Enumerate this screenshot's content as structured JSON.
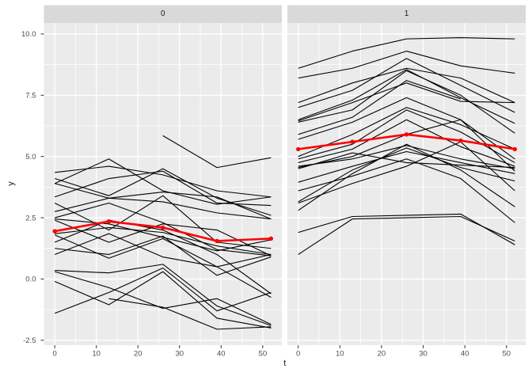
{
  "colors": {
    "background": "#FFFFFF",
    "panel_bg": "#EBEBEB",
    "strip_bg": "#D9D9D9",
    "grid": "#FFFFFF",
    "tick": "#333333",
    "axis_text": "#4D4D4D",
    "title_text": "#1A1A1A",
    "series_line": "#000000",
    "mean_line": "#FF0000"
  },
  "chart_data": {
    "type": "line",
    "title": "",
    "xlabel": "t",
    "ylabel": "y",
    "grid": true,
    "legend": "none",
    "x": [
      0,
      13,
      26,
      39,
      52
    ],
    "x_domain": [
      -2.6,
      54.6
    ],
    "y_domain": [
      -2.7,
      10.45
    ],
    "x_ticks": [
      0,
      10,
      20,
      30,
      40,
      50
    ],
    "x_tick_labels": [
      "0",
      "10",
      "20",
      "30",
      "40",
      "50"
    ],
    "x_minor_ticks": [
      5,
      15,
      25,
      35,
      45
    ],
    "y_ticks": [
      -2.5,
      0,
      2.5,
      5,
      7.5,
      10
    ],
    "y_tick_labels": [
      "-2.5",
      "0.0",
      "2.5",
      "5.0",
      "7.5",
      "10.0"
    ],
    "y_minor_ticks": [
      -1.25,
      1.25,
      3.75,
      6.25,
      8.75
    ],
    "facets": [
      {
        "label": "0",
        "mean": [
          1.95,
          2.35,
          2.1,
          1.55,
          1.65
        ],
        "series": [
          [
            4.35,
            4.6,
            4.25,
            3.6,
            3.35
          ],
          [
            4.1,
            3.4,
            4.5,
            3.3,
            2.6
          ],
          [
            3.9,
            4.9,
            3.6,
            3.05,
            3.35
          ],
          [
            3.9,
            3.3,
            3.55,
            3.35,
            2.45
          ],
          [
            3.35,
            4.1,
            4.4,
            3.1,
            3.0
          ],
          [
            3.1,
            2.0,
            3.4,
            1.5,
            1.25
          ],
          [
            2.75,
            3.3,
            3.15,
            2.7,
            2.45
          ],
          [
            2.5,
            3.1,
            2.3,
            1.2,
            0.95
          ],
          [
            2.45,
            2.25,
            1.7,
            1.15,
            1.6
          ],
          [
            2.4,
            1.5,
            2.25,
            2.0,
            0.95
          ],
          [
            1.85,
            2.1,
            1.9,
            1.35,
            1.0
          ],
          [
            1.8,
            0.85,
            1.65,
            0.5,
            1.0
          ],
          [
            1.5,
            2.4,
            2.0,
            1.0,
            -0.6
          ],
          [
            1.25,
            1.0,
            1.75,
            0.15,
            0.9
          ],
          [
            1.0,
            1.85,
            0.9,
            0.5,
            -0.75
          ],
          [
            0.35,
            0.25,
            0.6,
            -1.1,
            -1.9
          ],
          [
            0.3,
            -0.35,
            -1.2,
            -0.8,
            -1.85
          ],
          [
            -0.1,
            -1.05,
            0.3,
            -1.6,
            -2.0
          ],
          [
            -1.4,
            -0.55,
            0.45,
            -1.3,
            -0.55
          ],
          [
            null,
            -0.8,
            -1.15,
            -2.05,
            -1.95
          ],
          [
            null,
            null,
            5.85,
            4.55,
            4.95
          ]
        ]
      },
      {
        "label": "1",
        "mean": [
          5.3,
          5.6,
          5.9,
          5.65,
          5.3
        ],
        "series": [
          [
            8.6,
            9.3,
            9.8,
            9.85,
            9.8
          ],
          [
            8.2,
            8.6,
            9.3,
            8.7,
            8.4
          ],
          [
            7.2,
            8.0,
            8.6,
            8.2,
            7.2
          ],
          [
            7.0,
            7.7,
            9.0,
            7.9,
            6.8
          ],
          [
            6.5,
            7.3,
            8.55,
            7.4,
            6.35
          ],
          [
            6.4,
            6.9,
            8.5,
            7.5,
            5.95
          ],
          [
            6.45,
            7.2,
            8.0,
            7.25,
            7.2
          ],
          [
            5.9,
            6.6,
            8.1,
            7.35,
            null
          ],
          [
            5.7,
            6.4,
            7.4,
            6.5,
            4.9
          ],
          [
            5.0,
            5.9,
            7.0,
            6.3,
            5.3
          ],
          [
            4.9,
            5.5,
            6.9,
            6.0,
            4.75
          ],
          [
            4.75,
            5.3,
            6.5,
            5.4,
            4.6
          ],
          [
            4.6,
            4.9,
            5.45,
            4.9,
            4.5
          ],
          [
            4.55,
            5.0,
            5.9,
            6.5,
            4.4
          ],
          [
            4.5,
            5.15,
            4.75,
            4.65,
            4.55
          ],
          [
            3.95,
            4.6,
            5.2,
            4.75,
            4.3
          ],
          [
            3.6,
            4.2,
            4.9,
            4.1,
            2.3
          ],
          [
            3.15,
            4.45,
            5.35,
            4.55,
            4.0
          ],
          [
            3.1,
            3.9,
            4.6,
            5.6,
            3.6
          ],
          [
            2.8,
            4.3,
            5.5,
            4.45,
            2.95
          ],
          [
            1.9,
            2.55,
            2.6,
            2.65,
            1.4
          ],
          [
            1.0,
            2.45,
            2.5,
            2.55,
            1.55
          ]
        ]
      }
    ]
  }
}
